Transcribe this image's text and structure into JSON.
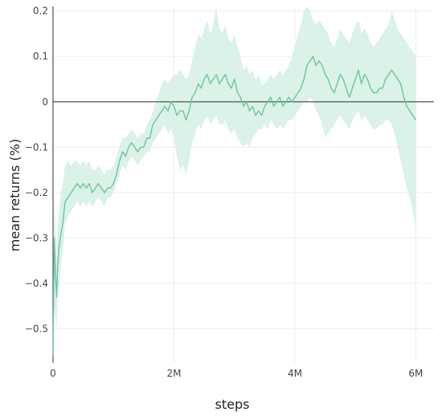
{
  "chart_data": {
    "type": "line",
    "title": "",
    "xlabel": "steps",
    "ylabel": "mean returns (%)",
    "xlim": [
      0,
      6300000
    ],
    "ylim": [
      -0.575,
      0.21
    ],
    "x_ticks": [
      {
        "value": 0,
        "label": "0"
      },
      {
        "value": 2000000,
        "label": "2M"
      },
      {
        "value": 4000000,
        "label": "4M"
      },
      {
        "value": 6000000,
        "label": "6M"
      }
    ],
    "y_ticks": [
      {
        "value": 0.2,
        "label": "0.2"
      },
      {
        "value": 0.1,
        "label": "0.1"
      },
      {
        "value": 0,
        "label": "0"
      },
      {
        "value": -0.1,
        "label": "−0.1"
      },
      {
        "value": -0.2,
        "label": "−0.2"
      },
      {
        "value": -0.3,
        "label": "−0.3"
      },
      {
        "value": -0.4,
        "label": "−0.4"
      },
      {
        "value": -0.5,
        "label": "−0.5"
      }
    ],
    "grid": true,
    "zero_line": true,
    "line_color": "#6cc4a1",
    "band_color": "#d4f0e3",
    "series": [
      {
        "x": [
          0,
          20000,
          40000,
          60000,
          80000,
          100000,
          130000,
          160000,
          200000,
          250000,
          300000,
          350000,
          400000,
          450000,
          500000,
          550000,
          600000,
          650000,
          700000,
          750000,
          800000,
          850000,
          900000,
          950000,
          1000000,
          1050000,
          1100000,
          1150000,
          1200000,
          1250000,
          1300000,
          1350000,
          1400000,
          1450000,
          1500000,
          1550000,
          1600000,
          1650000,
          1700000,
          1750000,
          1800000,
          1850000,
          1900000,
          1950000,
          2000000,
          2050000,
          2100000,
          2150000,
          2200000,
          2250000,
          2300000,
          2350000,
          2400000,
          2450000,
          2500000,
          2550000,
          2600000,
          2650000,
          2700000,
          2750000,
          2800000,
          2850000,
          2900000,
          2950000,
          3000000,
          3050000,
          3100000,
          3150000,
          3200000,
          3250000,
          3300000,
          3350000,
          3400000,
          3450000,
          3500000,
          3550000,
          3600000,
          3650000,
          3700000,
          3750000,
          3800000,
          3850000,
          3900000,
          3950000,
          4000000,
          4050000,
          4100000,
          4150000,
          4200000,
          4250000,
          4300000,
          4350000,
          4400000,
          4450000,
          4500000,
          4550000,
          4600000,
          4650000,
          4700000,
          4750000,
          4800000,
          4850000,
          4900000,
          4950000,
          5000000,
          5050000,
          5100000,
          5150000,
          5200000,
          5250000,
          5300000,
          5350000,
          5400000,
          5450000,
          5500000,
          5550000,
          5600000,
          5650000,
          5700000,
          5750000,
          5800000,
          5850000,
          5900000,
          5950000,
          6000000
        ],
        "y": [
          -0.56,
          -0.3,
          -0.38,
          -0.43,
          -0.35,
          -0.32,
          -0.29,
          -0.27,
          -0.22,
          -0.21,
          -0.2,
          -0.19,
          -0.18,
          -0.19,
          -0.18,
          -0.19,
          -0.18,
          -0.2,
          -0.19,
          -0.18,
          -0.19,
          -0.2,
          -0.19,
          -0.19,
          -0.18,
          -0.16,
          -0.13,
          -0.11,
          -0.12,
          -0.1,
          -0.09,
          -0.1,
          -0.11,
          -0.1,
          -0.1,
          -0.08,
          -0.08,
          -0.05,
          -0.04,
          -0.03,
          -0.02,
          -0.01,
          -0.02,
          -0.0,
          -0.01,
          -0.03,
          -0.02,
          -0.02,
          -0.04,
          -0.02,
          0.01,
          0.02,
          0.04,
          0.03,
          0.05,
          0.06,
          0.04,
          0.05,
          0.06,
          0.04,
          0.05,
          0.06,
          0.04,
          0.03,
          0.05,
          0.02,
          0.01,
          -0.01,
          0.0,
          -0.02,
          -0.01,
          -0.03,
          -0.02,
          -0.03,
          -0.01,
          0.0,
          0.01,
          -0.01,
          0.0,
          0.01,
          -0.01,
          0.0,
          0.01,
          0.0,
          0.01,
          0.02,
          0.03,
          0.05,
          0.08,
          0.09,
          0.1,
          0.08,
          0.09,
          0.08,
          0.06,
          0.05,
          0.03,
          0.02,
          0.04,
          0.06,
          0.05,
          0.03,
          0.01,
          0.03,
          0.05,
          0.07,
          0.04,
          0.06,
          0.05,
          0.03,
          0.02,
          0.02,
          0.03,
          0.03,
          0.05,
          0.06,
          0.07,
          0.06,
          0.05,
          0.04,
          0.01,
          -0.01,
          -0.02,
          -0.03,
          -0.04
        ],
        "lower": [
          -0.56,
          -0.45,
          -0.48,
          -0.5,
          -0.43,
          -0.4,
          -0.36,
          -0.33,
          -0.27,
          -0.25,
          -0.24,
          -0.23,
          -0.22,
          -0.23,
          -0.22,
          -0.23,
          -0.22,
          -0.23,
          -0.22,
          -0.21,
          -0.22,
          -0.23,
          -0.21,
          -0.21,
          -0.2,
          -0.18,
          -0.16,
          -0.14,
          -0.15,
          -0.13,
          -0.12,
          -0.13,
          -0.14,
          -0.13,
          -0.12,
          -0.11,
          -0.11,
          -0.09,
          -0.08,
          -0.07,
          -0.06,
          -0.05,
          -0.07,
          -0.06,
          -0.08,
          -0.12,
          -0.15,
          -0.14,
          -0.16,
          -0.13,
          -0.09,
          -0.07,
          -0.05,
          -0.06,
          -0.04,
          -0.03,
          -0.05,
          -0.04,
          -0.03,
          -0.05,
          -0.05,
          -0.04,
          -0.06,
          -0.07,
          -0.06,
          -0.08,
          -0.09,
          -0.1,
          -0.09,
          -0.1,
          -0.08,
          -0.07,
          -0.06,
          -0.06,
          -0.05,
          -0.06,
          -0.04,
          -0.05,
          -0.06,
          -0.05,
          -0.06,
          -0.05,
          -0.04,
          -0.04,
          -0.03,
          -0.02,
          -0.01,
          -0.0,
          0.0,
          0.01,
          0.0,
          -0.02,
          -0.03,
          -0.05,
          -0.08,
          -0.07,
          -0.06,
          -0.05,
          -0.04,
          -0.03,
          -0.04,
          -0.05,
          -0.06,
          -0.04,
          -0.03,
          -0.02,
          -0.04,
          -0.03,
          -0.04,
          -0.05,
          -0.06,
          -0.06,
          -0.05,
          -0.05,
          -0.04,
          -0.04,
          -0.05,
          -0.07,
          -0.1,
          -0.13,
          -0.16,
          -0.19,
          -0.21,
          -0.24,
          -0.28
        ],
        "upper": [
          -0.56,
          -0.2,
          -0.28,
          -0.35,
          -0.27,
          -0.24,
          -0.2,
          -0.18,
          -0.14,
          -0.13,
          -0.14,
          -0.13,
          -0.13,
          -0.14,
          -0.13,
          -0.14,
          -0.13,
          -0.15,
          -0.15,
          -0.14,
          -0.15,
          -0.16,
          -0.15,
          -0.15,
          -0.14,
          -0.12,
          -0.1,
          -0.08,
          -0.08,
          -0.07,
          -0.06,
          -0.07,
          -0.08,
          -0.07,
          -0.07,
          -0.05,
          -0.04,
          -0.02,
          0.0,
          0.02,
          0.04,
          0.05,
          0.04,
          0.05,
          0.06,
          0.06,
          0.07,
          0.06,
          0.05,
          0.06,
          0.09,
          0.12,
          0.15,
          0.14,
          0.16,
          0.18,
          0.15,
          0.17,
          0.21,
          0.16,
          0.15,
          0.17,
          0.14,
          0.13,
          0.15,
          0.12,
          0.1,
          0.07,
          0.08,
          0.06,
          0.07,
          0.05,
          0.06,
          0.04,
          0.04,
          0.05,
          0.06,
          0.05,
          0.06,
          0.07,
          0.06,
          0.07,
          0.08,
          0.1,
          0.12,
          0.15,
          0.17,
          0.2,
          0.21,
          0.2,
          0.18,
          0.17,
          0.18,
          0.17,
          0.16,
          0.15,
          0.13,
          0.12,
          0.14,
          0.16,
          0.15,
          0.14,
          0.13,
          0.15,
          0.17,
          0.18,
          0.15,
          0.16,
          0.15,
          0.13,
          0.12,
          0.13,
          0.14,
          0.15,
          0.16,
          0.17,
          0.2,
          0.18,
          0.16,
          0.15,
          0.14,
          0.13,
          0.12,
          0.11,
          0.1
        ]
      }
    ]
  }
}
